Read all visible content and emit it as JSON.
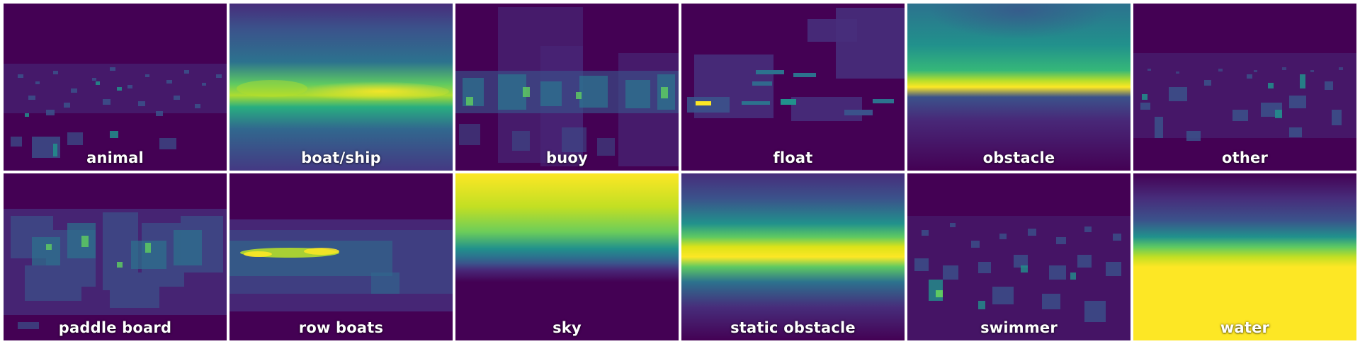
{
  "chart_data": {
    "type": "heatmap",
    "colormap": "viridis",
    "colors": {
      "low": "#440154",
      "mid": "#21918c",
      "high": "#fde725",
      "gap": "#ffffff"
    },
    "panels": [
      {
        "label": "animal"
      },
      {
        "label": "boat/ship"
      },
      {
        "label": "buoy"
      },
      {
        "label": "float"
      },
      {
        "label": "obstacle"
      },
      {
        "label": "other"
      },
      {
        "label": "paddle board"
      },
      {
        "label": "row boats"
      },
      {
        "label": "sky"
      },
      {
        "label": "static obstacle"
      },
      {
        "label": "swimmer"
      },
      {
        "label": "water"
      }
    ]
  }
}
